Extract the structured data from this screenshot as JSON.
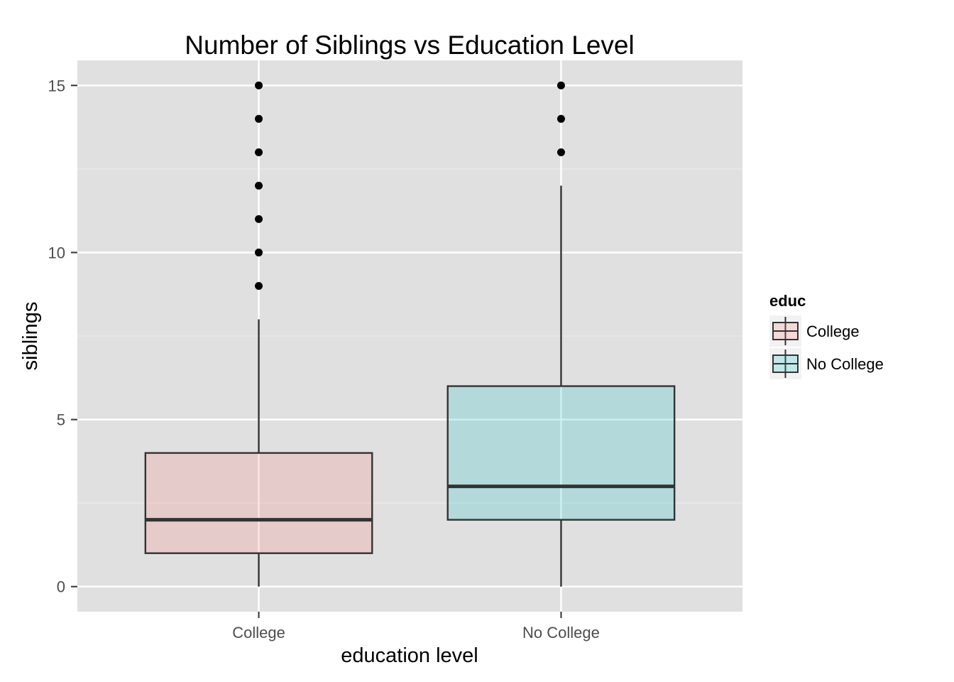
{
  "chart_data": {
    "type": "boxplot",
    "title": "Number of Siblings vs Education Level",
    "xlabel": "education level",
    "ylabel": "siblings",
    "categories": [
      "College",
      "No College"
    ],
    "ylim": [
      -0.75,
      15.75
    ],
    "yticks": [
      0,
      5,
      10,
      15
    ],
    "grid": true,
    "legend": {
      "title": "educ",
      "placement": "right"
    },
    "boxes": [
      {
        "category": "College",
        "min": 0,
        "q1": 1,
        "median": 2,
        "q3": 4,
        "max": 8,
        "outliers": [
          9,
          10,
          11,
          12,
          13,
          14,
          15
        ],
        "fill": "#F8766D"
      },
      {
        "category": "No College",
        "min": 0,
        "q1": 2,
        "median": 3,
        "q3": 6,
        "max": 12,
        "outliers": [
          13,
          14,
          15
        ],
        "fill": "#00BFC4"
      }
    ]
  },
  "colors": {
    "panel_bg": "#e0e0e0",
    "grid_major": "#ffffff",
    "grid_minor": "#ebebeb",
    "box_outline": "#333333"
  }
}
